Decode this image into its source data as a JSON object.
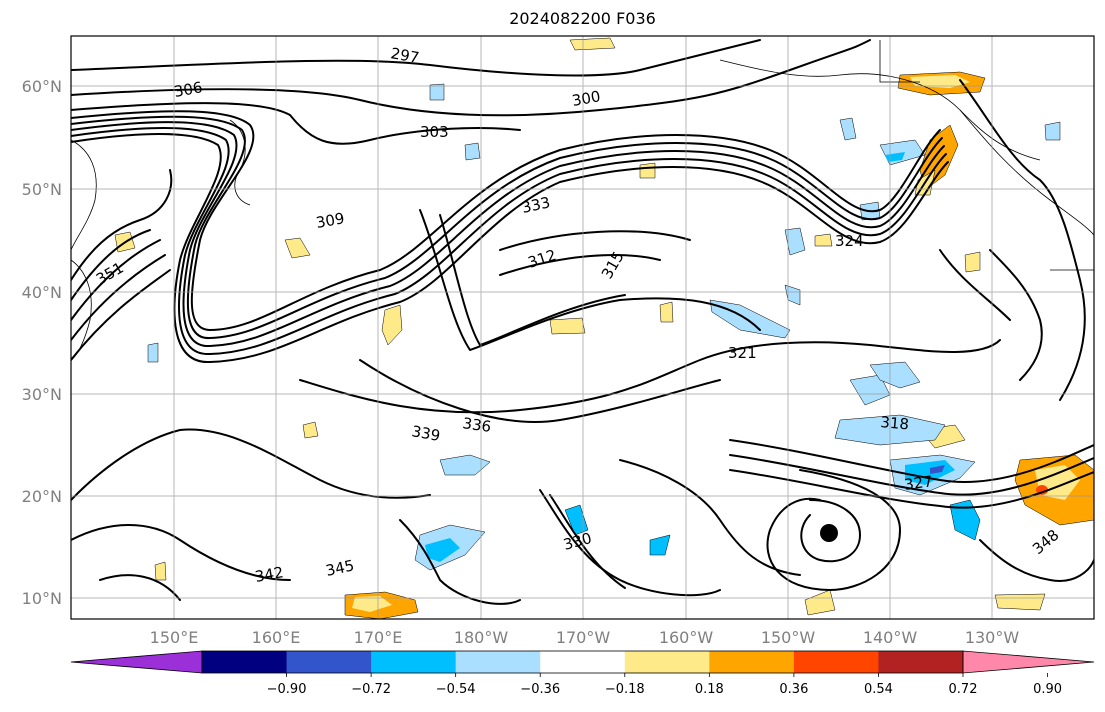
{
  "title": "2024082200 F036",
  "lat_labels": [
    "60°N",
    "50°N",
    "40°N",
    "30°N",
    "20°N",
    "10°N"
  ],
  "lon_labels": [
    "150°E",
    "160°E",
    "170°E",
    "180°W",
    "170°W",
    "160°W",
    "150°W",
    "140°W",
    "130°W"
  ],
  "colorbar": {
    "colors": [
      "#9b30d9",
      "#000080",
      "#3355cc",
      "#00bfff",
      "#aadfff",
      "#ffffff",
      "#ffea8a",
      "#ffa500",
      "#ff4500",
      "#b22222",
      "#ff88aa"
    ],
    "labels": [
      "−0.90",
      "−0.72",
      "−0.54",
      "−0.36",
      "−0.18",
      "0.18",
      "0.36",
      "0.54",
      "0.72",
      "0.90"
    ]
  },
  "contour_labels": [
    "297",
    "300",
    "303",
    "306",
    "309",
    "312",
    "315",
    "318",
    "321",
    "324",
    "327",
    "330",
    "333",
    "336",
    "339",
    "342",
    "345",
    "348",
    "351"
  ]
}
